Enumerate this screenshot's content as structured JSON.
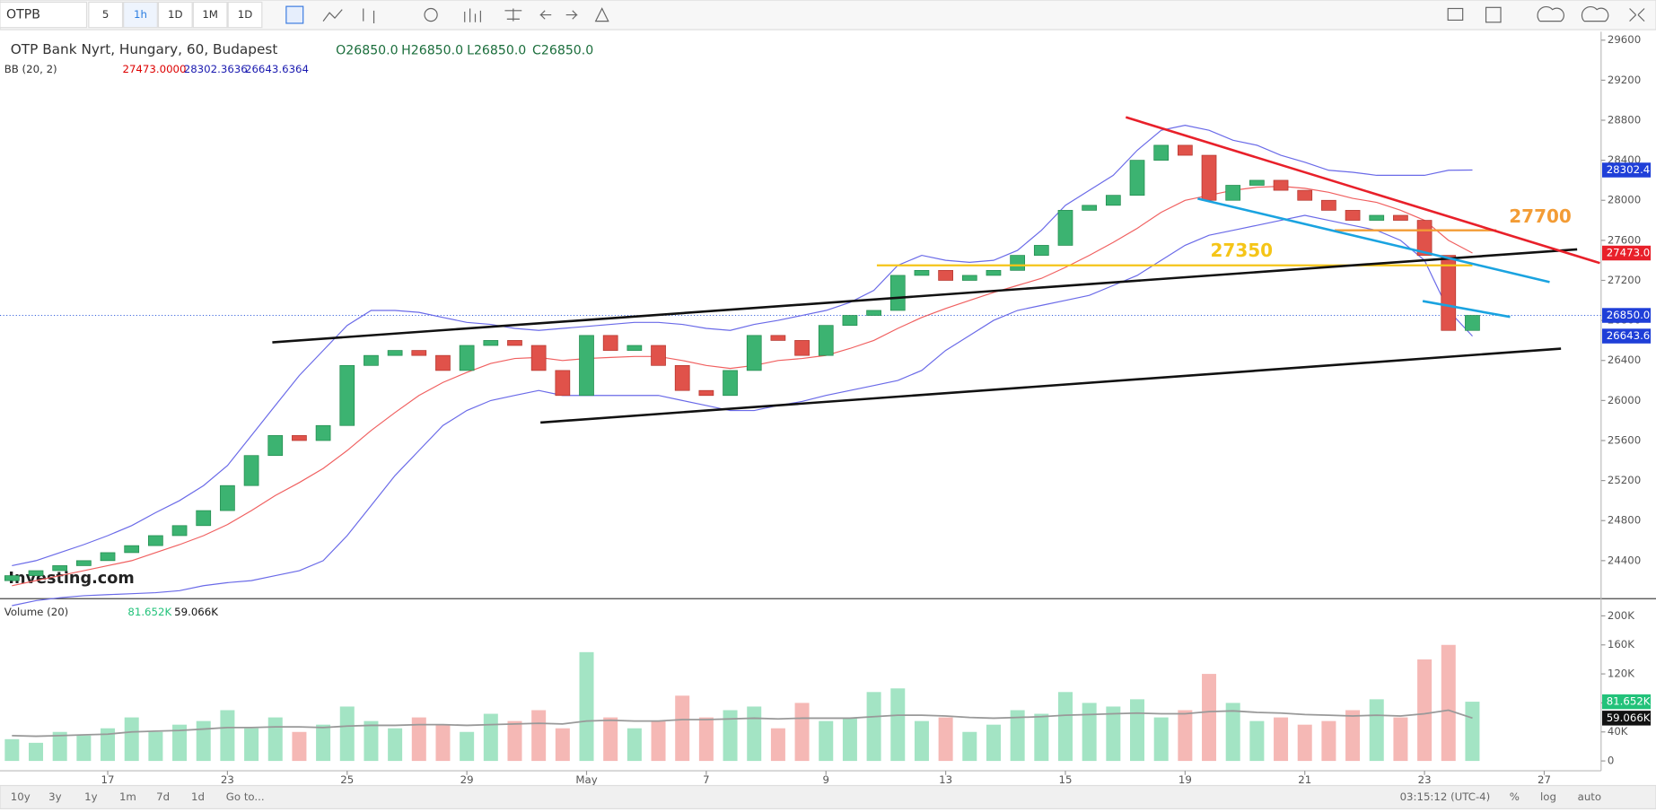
{
  "toolbar": {
    "symbol": "OTPB",
    "intervals": [
      "5",
      "1h",
      "1D",
      "1M",
      "1D"
    ]
  },
  "watermark": "Investing.com",
  "chart_data": {
    "type": "candlestick",
    "title": "OTP Bank Nyrt, Hungary, 60, Budapest",
    "ohlc_legend": [
      "O26850.0",
      "H26850.0",
      "L26850.0",
      "C26850.0"
    ],
    "indicator_legend": {
      "name": "BB (20, 2)",
      "values": [
        "27473.0000",
        "28302.3636",
        "26643.6364"
      ]
    },
    "up_color": "#3cb371",
    "down_color": "#e0524a",
    "x": [
      2,
      6,
      10,
      14,
      18,
      22,
      26,
      30,
      34,
      38,
      42,
      46,
      50,
      54,
      58,
      62,
      66,
      70,
      74,
      78,
      82,
      86,
      90,
      94,
      98,
      102,
      106,
      110,
      114,
      118,
      122,
      126,
      130,
      134,
      138,
      142,
      146,
      150,
      154,
      158,
      162,
      166,
      170,
      174,
      178,
      182,
      186,
      190,
      194,
      198,
      202,
      206,
      210,
      214,
      218,
      222,
      226,
      230,
      234,
      238,
      242,
      246
    ],
    "open": [
      24200,
      24250,
      24300,
      24350,
      24400,
      24480,
      24550,
      24650,
      24750,
      24900,
      25150,
      25450,
      25650,
      25600,
      25750,
      26350,
      26450,
      26500,
      26450,
      26300,
      26550,
      26600,
      26550,
      26300,
      26050,
      26650,
      26500,
      26550,
      26350,
      26100,
      26050,
      26300,
      26650,
      26600,
      26450,
      26750,
      26850,
      26900,
      27250,
      27300,
      27200,
      27250,
      27300,
      27450,
      27550,
      27900,
      27950,
      28050,
      28400,
      28550,
      28450,
      28000,
      28150,
      28200,
      28100,
      28000,
      27900,
      27800,
      27850,
      27800,
      27450,
      26700
    ],
    "close": [
      24250,
      24300,
      24350,
      24400,
      24480,
      24550,
      24650,
      24750,
      24900,
      25150,
      25450,
      25650,
      25600,
      25750,
      26350,
      26450,
      26500,
      26450,
      26300,
      26550,
      26600,
      26550,
      26300,
      26050,
      26650,
      26500,
      26550,
      26350,
      26100,
      26050,
      26300,
      26650,
      26600,
      26450,
      26750,
      26850,
      26900,
      27250,
      27300,
      27200,
      27250,
      27300,
      27450,
      27550,
      27900,
      27950,
      28050,
      28400,
      28550,
      28450,
      28000,
      28150,
      28200,
      28100,
      28000,
      27900,
      27800,
      27850,
      27800,
      27450,
      26700,
      26850
    ],
    "bollinger": {
      "upper_color": "#6a6ae8",
      "middle_color": "#f06060",
      "upper": [
        24350,
        24400,
        24480,
        24560,
        24650,
        24750,
        24880,
        25000,
        25150,
        25350,
        25650,
        25950,
        26250,
        26500,
        26750,
        26900,
        26900,
        26880,
        26830,
        26780,
        26760,
        26720,
        26700,
        26720,
        26740,
        26760,
        26780,
        26780,
        26760,
        26720,
        26700,
        26760,
        26800,
        26850,
        26900,
        26980,
        27100,
        27350,
        27450,
        27400,
        27380,
        27400,
        27500,
        27700,
        27950,
        28100,
        28250,
        28500,
        28700,
        28750,
        28700,
        28600,
        28550,
        28450,
        28380,
        28300,
        28280,
        28250,
        28250,
        28250,
        28300,
        28302.4
      ],
      "middle": [
        24150,
        24200,
        24250,
        24300,
        24350,
        24400,
        24480,
        24560,
        24650,
        24760,
        24900,
        25050,
        25180,
        25320,
        25500,
        25700,
        25880,
        26050,
        26180,
        26280,
        26370,
        26420,
        26430,
        26400,
        26420,
        26430,
        26440,
        26440,
        26400,
        26350,
        26320,
        26350,
        26400,
        26420,
        26450,
        26520,
        26600,
        26720,
        26830,
        26920,
        27000,
        27080,
        27150,
        27220,
        27330,
        27450,
        27580,
        27720,
        27880,
        28000,
        28050,
        28100,
        28130,
        28140,
        28120,
        28080,
        28020,
        27980,
        27900,
        27800,
        27600,
        27473
      ],
      "lower": [
        23950,
        24000,
        24030,
        24050,
        24060,
        24070,
        24080,
        24100,
        24150,
        24180,
        24200,
        24250,
        24300,
        24400,
        24650,
        24950,
        25250,
        25500,
        25750,
        25900,
        26000,
        26050,
        26100,
        26050,
        26050,
        26050,
        26050,
        26050,
        26000,
        25950,
        25900,
        25900,
        25950,
        25990,
        26050,
        26100,
        26150,
        26200,
        26300,
        26500,
        26650,
        26800,
        26900,
        26950,
        27000,
        27050,
        27150,
        27250,
        27400,
        27550,
        27650,
        27700,
        27750,
        27800,
        27850,
        27800,
        27750,
        27700,
        27600,
        27400,
        26900,
        26643.6
      ]
    },
    "xlim": [
      0,
      267.5
    ],
    "xticks": [
      {
        "value": 18,
        "label": "17"
      },
      {
        "value": 38,
        "label": "23"
      },
      {
        "value": 58,
        "label": "25"
      },
      {
        "value": 78,
        "label": "29"
      },
      {
        "value": 98,
        "label": "May"
      },
      {
        "value": 118,
        "label": "7"
      },
      {
        "value": 138,
        "label": "9"
      },
      {
        "value": 158,
        "label": "13"
      },
      {
        "value": 178,
        "label": "15"
      },
      {
        "value": 198,
        "label": "19"
      },
      {
        "value": 218,
        "label": "21"
      },
      {
        "value": 238,
        "label": "23"
      },
      {
        "value": 258,
        "label": "27"
      }
    ],
    "ylim": [
      24020,
      29663
    ],
    "yticks": [
      24400,
      24800,
      25200,
      25600,
      26000,
      26400,
      26800,
      27200,
      27600,
      28000,
      28400,
      28800,
      29200,
      29600
    ],
    "grid": false,
    "last_price": {
      "value": 26850,
      "color": "#1f4fd8"
    },
    "price_tags": [
      {
        "value": 28302.4,
        "label": "28302.4",
        "color": "#1f3fd8"
      },
      {
        "value": 27473,
        "label": "27473.0",
        "color": "#e8202a"
      },
      {
        "value": 26850,
        "label": "26850.0",
        "color": "#1f3fd8"
      },
      {
        "value": 26643.6,
        "label": "26643.6",
        "color": "#1f3fd8"
      }
    ],
    "trend_lines": [
      {
        "x": [
          45.5,
          263.5
        ],
        "y": [
          26581,
          27510
        ],
        "color": "#111111"
      },
      {
        "x": [
          90.3,
          260.8
        ],
        "y": [
          25780,
          26518
        ],
        "color": "#111111"
      },
      {
        "x": [
          188.1,
          267.3
        ],
        "y": [
          28830,
          27373
        ],
        "color": "#e8202a"
      },
      {
        "x": [
          200.1,
          258.9
        ],
        "y": [
          28017,
          27183
        ],
        "color": "#1aa3e0"
      },
      {
        "x": [
          237.7,
          252.3
        ],
        "y": [
          26993,
          26835
        ],
        "color": "#1aa3e0"
      }
    ],
    "levels": [
      {
        "value": 27350,
        "label": "27350",
        "x": [
          146.5,
          246
        ],
        "color": "#f5c518"
      },
      {
        "value": 27700,
        "label": "27700",
        "x": [
          223,
          250
        ],
        "color": "#f39c35"
      }
    ],
    "volume": {
      "legend": {
        "name": "Volume (20)",
        "values": [
          "81.652K",
          "59.066K"
        ]
      },
      "up_color": "#a3e4c4",
      "down_color": "#f5b8b5",
      "ma_color": "#999999",
      "values": [
        30000,
        25000,
        40000,
        35000,
        45000,
        60000,
        40000,
        50000,
        55000,
        70000,
        45000,
        60000,
        40000,
        50000,
        75000,
        55000,
        45000,
        60000,
        50000,
        40000,
        65000,
        55000,
        70000,
        45000,
        150000,
        60000,
        45000,
        55000,
        90000,
        60000,
        70000,
        75000,
        45000,
        80000,
        55000,
        60000,
        95000,
        100000,
        55000,
        60000,
        40000,
        50000,
        70000,
        65000,
        95000,
        80000,
        75000,
        85000,
        60000,
        70000,
        120000,
        80000,
        55000,
        60000,
        50000,
        55000,
        70000,
        85000,
        60000,
        140000,
        160000,
        81652
      ],
      "ma": [
        35000,
        34000,
        35000,
        36000,
        37000,
        40000,
        41000,
        42000,
        44000,
        46000,
        46000,
        47000,
        47000,
        46000,
        48000,
        49000,
        49000,
        50000,
        50000,
        49000,
        50000,
        51000,
        52000,
        51000,
        55000,
        56000,
        55000,
        55000,
        57000,
        57000,
        58000,
        59000,
        58000,
        59000,
        59000,
        59000,
        61000,
        63000,
        63000,
        62000,
        60000,
        59000,
        60000,
        61000,
        63000,
        64000,
        65000,
        66000,
        65000,
        65000,
        68000,
        69000,
        67000,
        66000,
        64000,
        63000,
        62000,
        63000,
        62000,
        65000,
        70000,
        59066
      ],
      "ylim": [
        -15000,
        215000
      ],
      "yticks": [
        0,
        {
          "value": 40000,
          "label": "40K"
        },
        {
          "value": 80000,
          "label": "80K"
        },
        {
          "value": 120000,
          "label": "120K"
        },
        {
          "value": 160000,
          "label": "160K"
        },
        {
          "value": 200000,
          "label": "200K"
        }
      ],
      "tags": [
        {
          "value": 81652,
          "label": "81.652K",
          "color": "#22c27a"
        },
        {
          "value": 59066,
          "label": "59.066K",
          "color": "#111111"
        }
      ]
    }
  },
  "footer": {
    "ranges": [
      "10y",
      "3y",
      "1y",
      "1m",
      "7d",
      "1d",
      "Go to..."
    ],
    "time": "03:15:12 (UTC-4)",
    "options": [
      "%",
      "log",
      "auto"
    ]
  }
}
